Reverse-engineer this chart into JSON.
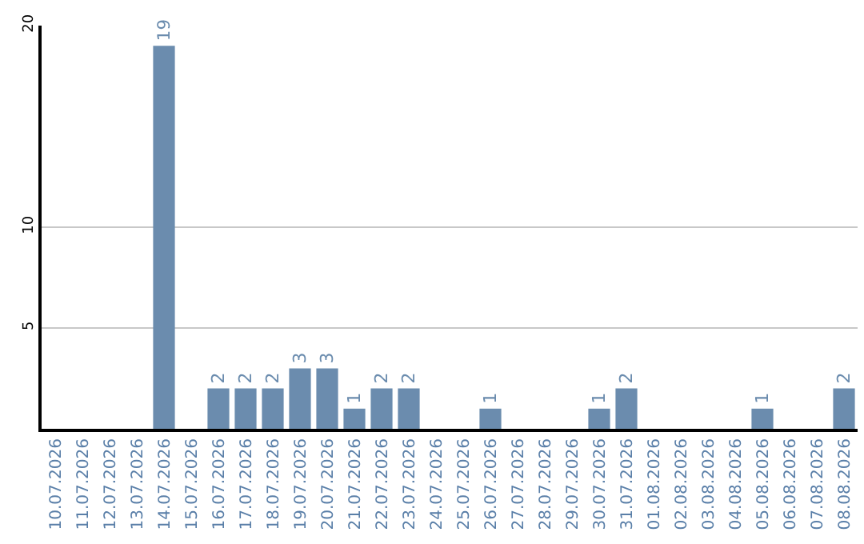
{
  "chart_data": {
    "type": "bar",
    "categories": [
      "10.07.2026",
      "11.07.2026",
      "12.07.2026",
      "13.07.2026",
      "14.07.2026",
      "15.07.2026",
      "16.07.2026",
      "17.07.2026",
      "18.07.2026",
      "19.07.2026",
      "20.07.2026",
      "21.07.2026",
      "22.07.2026",
      "23.07.2026",
      "24.07.2026",
      "25.07.2026",
      "26.07.2026",
      "27.07.2026",
      "28.07.2026",
      "29.07.2026",
      "30.07.2026",
      "31.07.2026",
      "01.08.2026",
      "02.08.2026",
      "03.08.2026",
      "04.08.2026",
      "05.08.2026",
      "06.08.2026",
      "07.08.2026",
      "08.08.2026"
    ],
    "values": [
      0,
      0,
      0,
      0,
      19,
      0,
      2,
      2,
      2,
      3,
      3,
      1,
      2,
      2,
      0,
      0,
      1,
      0,
      0,
      0,
      1,
      2,
      0,
      0,
      0,
      0,
      1,
      0,
      0,
      2
    ],
    "value_labels": [
      null,
      null,
      null,
      null,
      "19",
      null,
      "2",
      "2",
      "2",
      "3",
      "3",
      "1",
      "2",
      "2",
      null,
      null,
      "1",
      null,
      null,
      null,
      "1",
      "2",
      null,
      null,
      null,
      null,
      "1",
      null,
      null,
      "2"
    ],
    "color": "#6b8cae",
    "ylim": [
      0,
      20
    ],
    "yticks": [
      5,
      10,
      20
    ],
    "grid": "y",
    "legend": false
  }
}
